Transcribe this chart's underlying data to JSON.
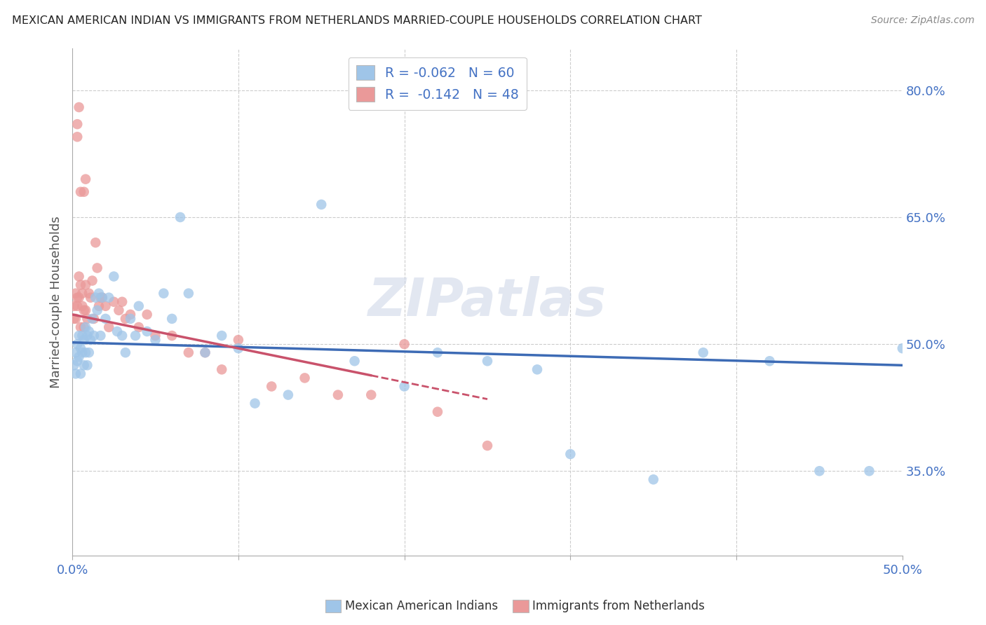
{
  "title": "MEXICAN AMERICAN INDIAN VS IMMIGRANTS FROM NETHERLANDS MARRIED-COUPLE HOUSEHOLDS CORRELATION CHART",
  "source": "Source: ZipAtlas.com",
  "ylabel": "Married-couple Households",
  "legend_blue_r": "R = -0.062",
  "legend_blue_n": "N = 60",
  "legend_pink_r": "R =  -0.142",
  "legend_pink_n": "N = 48",
  "blue_color": "#9fc5e8",
  "pink_color": "#ea9999",
  "blue_line_color": "#3d6bb5",
  "pink_line_color": "#c9526b",
  "watermark": "ZIPatlas",
  "background_color": "#ffffff",
  "blue_scatter_x": [
    0.001,
    0.002,
    0.002,
    0.003,
    0.003,
    0.004,
    0.004,
    0.005,
    0.005,
    0.006,
    0.006,
    0.007,
    0.007,
    0.008,
    0.008,
    0.009,
    0.009,
    0.01,
    0.01,
    0.011,
    0.012,
    0.013,
    0.014,
    0.015,
    0.016,
    0.017,
    0.018,
    0.02,
    0.022,
    0.025,
    0.027,
    0.03,
    0.032,
    0.035,
    0.038,
    0.04,
    0.045,
    0.05,
    0.055,
    0.06,
    0.065,
    0.07,
    0.08,
    0.09,
    0.1,
    0.11,
    0.13,
    0.15,
    0.17,
    0.2,
    0.22,
    0.25,
    0.28,
    0.3,
    0.35,
    0.38,
    0.42,
    0.45,
    0.48,
    0.5
  ],
  "blue_scatter_y": [
    0.475,
    0.465,
    0.49,
    0.48,
    0.5,
    0.485,
    0.51,
    0.465,
    0.495,
    0.49,
    0.51,
    0.475,
    0.505,
    0.49,
    0.52,
    0.475,
    0.51,
    0.49,
    0.515,
    0.505,
    0.53,
    0.51,
    0.555,
    0.54,
    0.56,
    0.51,
    0.555,
    0.53,
    0.555,
    0.58,
    0.515,
    0.51,
    0.49,
    0.53,
    0.51,
    0.545,
    0.515,
    0.505,
    0.56,
    0.53,
    0.65,
    0.56,
    0.49,
    0.51,
    0.495,
    0.43,
    0.44,
    0.665,
    0.48,
    0.45,
    0.49,
    0.48,
    0.47,
    0.37,
    0.34,
    0.49,
    0.48,
    0.35,
    0.35,
    0.495
  ],
  "pink_scatter_x": [
    0.001,
    0.001,
    0.002,
    0.002,
    0.003,
    0.003,
    0.004,
    0.004,
    0.005,
    0.005,
    0.006,
    0.006,
    0.007,
    0.007,
    0.008,
    0.008,
    0.009,
    0.01,
    0.011,
    0.012,
    0.013,
    0.014,
    0.015,
    0.016,
    0.017,
    0.018,
    0.02,
    0.022,
    0.025,
    0.028,
    0.03,
    0.032,
    0.035,
    0.04,
    0.045,
    0.05,
    0.06,
    0.07,
    0.08,
    0.09,
    0.1,
    0.12,
    0.14,
    0.16,
    0.18,
    0.2,
    0.22,
    0.25
  ],
  "pink_scatter_y": [
    0.53,
    0.545,
    0.53,
    0.56,
    0.545,
    0.555,
    0.555,
    0.58,
    0.57,
    0.52,
    0.56,
    0.545,
    0.52,
    0.54,
    0.54,
    0.57,
    0.53,
    0.56,
    0.555,
    0.575,
    0.53,
    0.62,
    0.59,
    0.545,
    0.555,
    0.555,
    0.545,
    0.52,
    0.55,
    0.54,
    0.55,
    0.53,
    0.535,
    0.52,
    0.535,
    0.51,
    0.51,
    0.49,
    0.49,
    0.47,
    0.505,
    0.45,
    0.46,
    0.44,
    0.44,
    0.5,
    0.42,
    0.38
  ],
  "pink_high_x": [
    0.003,
    0.003,
    0.004,
    0.005,
    0.007,
    0.008
  ],
  "pink_high_y": [
    0.745,
    0.76,
    0.78,
    0.68,
    0.68,
    0.695
  ],
  "xlim": [
    0.0,
    0.5
  ],
  "ylim": [
    0.25,
    0.85
  ],
  "blue_line_x0": 0.0,
  "blue_line_x1": 0.5,
  "blue_line_y0": 0.502,
  "blue_line_y1": 0.475,
  "pink_line_x0": 0.0,
  "pink_line_x1": 0.25,
  "pink_line_solid_x1": 0.18,
  "pink_line_y0": 0.535,
  "pink_line_y1": 0.435
}
